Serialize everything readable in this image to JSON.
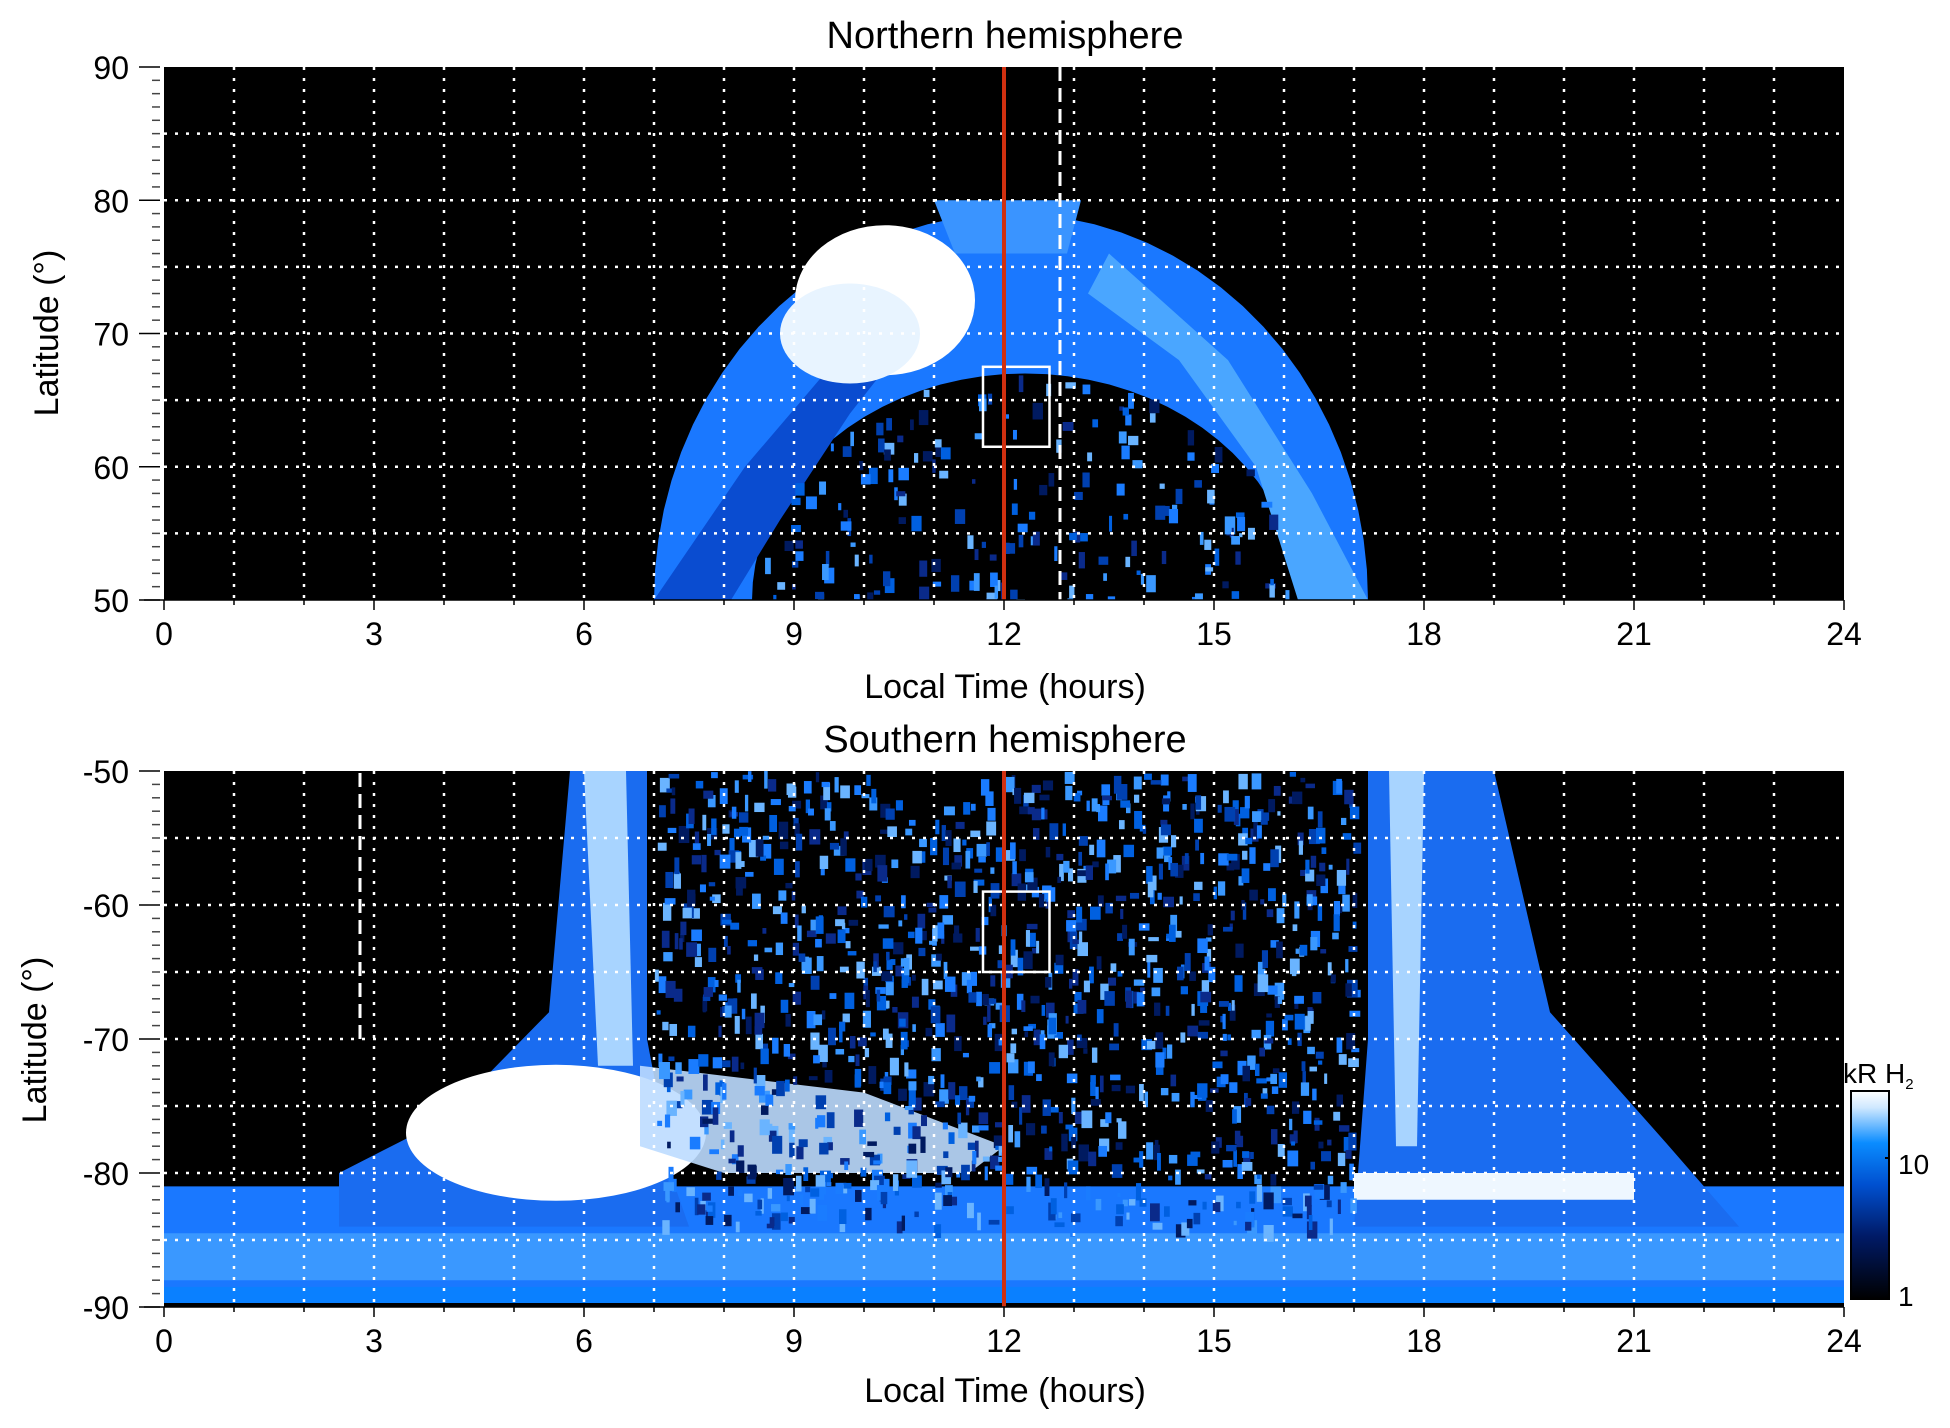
{
  "chart_data": [
    {
      "type": "heatmap",
      "title": "Northern hemisphere",
      "xlabel": "Local Time (hours)",
      "ylabel": "Latitude (°)",
      "xlim": [
        0,
        24
      ],
      "ylim": [
        50,
        90
      ],
      "xticks": [
        "0",
        "3",
        "6",
        "9",
        "12",
        "15",
        "18",
        "21",
        "24"
      ],
      "yticks": [
        "90",
        "80",
        "70",
        "60",
        "50"
      ],
      "grid": true,
      "red_line_lt": 12,
      "dashed_line_lt": 12.8,
      "box": {
        "lt": [
          11.7,
          12.65
        ],
        "lat": [
          61.5,
          67.5
        ]
      }
    },
    {
      "type": "heatmap",
      "title": "Southern hemisphere",
      "xlabel": "Local Time (hours)",
      "ylabel": "Latitude (°)",
      "xlim": [
        0,
        24
      ],
      "ylim": [
        -90,
        -50
      ],
      "xticks": [
        "0",
        "3",
        "6",
        "9",
        "12",
        "15",
        "18",
        "21",
        "24"
      ],
      "yticks": [
        "-50",
        "-60",
        "-70",
        "-80",
        "-90"
      ],
      "grid": true,
      "red_line_lt": 12,
      "dashed_line_lt": 2.8,
      "dashed_line_lat": [
        -50,
        -70
      ],
      "box": {
        "lt": [
          11.7,
          12.65
        ],
        "lat": [
          -65,
          -59
        ]
      }
    }
  ],
  "colorbar": {
    "label": "kR H",
    "label_sub": "2",
    "ticks": [
      "10",
      "1"
    ],
    "scale": "log",
    "range": [
      1,
      25
    ],
    "colors": [
      "#000000",
      "#001a66",
      "#0050d0",
      "#0a8cff",
      "#cfe8ff",
      "#ffffff"
    ]
  },
  "colors": {
    "red_line": "#d03010",
    "grid": "#ffffff"
  }
}
